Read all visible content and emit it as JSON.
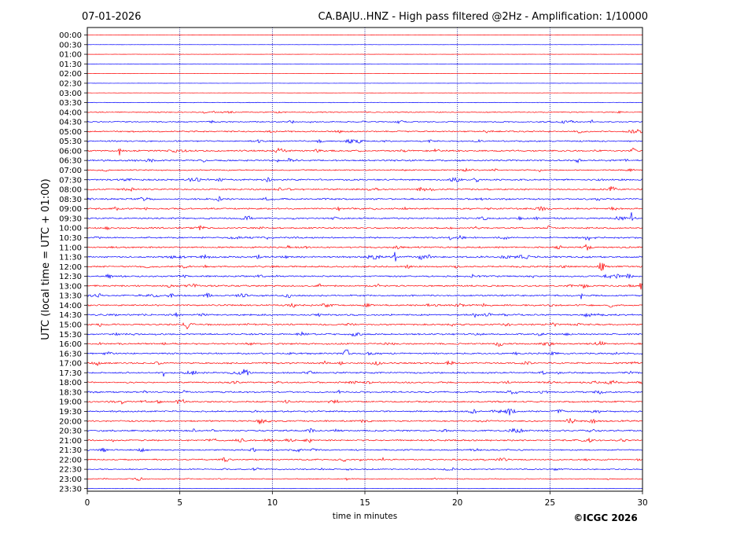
{
  "header": {
    "date": "07-01-2026",
    "title": "CA.BAJU..HNZ - High pass filtered @2Hz - Amplification: 1/10000"
  },
  "footer": {
    "copyright": "©ICGC 2026"
  },
  "colors": {
    "red": "#ff0000",
    "blue": "#0000ff",
    "grid": "#000080",
    "frame": "#000000"
  },
  "chart_data": {
    "type": "line",
    "subtype": "helicorder",
    "xlabel": "time in minutes",
    "ylabel": "UTC (local time = UTC + 01:00)",
    "xlim": [
      0,
      30
    ],
    "xticks": [
      0,
      5,
      10,
      15,
      20,
      25,
      30
    ],
    "grid": "vertical dotted lines at 5-minute intervals",
    "row_labels": [
      "00:00",
      "00:30",
      "01:00",
      "01:30",
      "02:00",
      "02:30",
      "03:00",
      "03:30",
      "04:00",
      "04:30",
      "05:00",
      "05:30",
      "06:00",
      "06:30",
      "07:00",
      "07:30",
      "08:00",
      "08:30",
      "09:00",
      "09:30",
      "10:00",
      "10:30",
      "11:00",
      "11:30",
      "12:00",
      "12:30",
      "13:00",
      "13:30",
      "14:00",
      "14:30",
      "15:00",
      "15:30",
      "16:00",
      "16:30",
      "17:00",
      "17:30",
      "18:00",
      "18:30",
      "19:00",
      "19:30",
      "20:00",
      "20:30",
      "21:00",
      "21:30",
      "22:00",
      "22:30",
      "23:00",
      "23:30"
    ],
    "row_colors": [
      "red",
      "blue"
    ],
    "noise_by_row": [
      0.1,
      0.1,
      0.1,
      0.1,
      0.1,
      0.1,
      0.1,
      0.3,
      0.5,
      0.6,
      0.7,
      0.7,
      0.8,
      0.8,
      0.6,
      0.8,
      0.8,
      0.8,
      0.8,
      0.8,
      0.8,
      0.8,
      0.8,
      0.9,
      0.8,
      0.8,
      0.8,
      0.8,
      0.8,
      0.8,
      0.8,
      0.8,
      0.8,
      0.8,
      0.8,
      0.8,
      0.8,
      0.8,
      0.8,
      0.8,
      0.8,
      0.8,
      0.8,
      0.7,
      0.7,
      0.6,
      0.5,
      0.1
    ],
    "events": [
      {
        "row": 12,
        "minute": 1.75,
        "amplitude": 1.0
      },
      {
        "row": 19,
        "minute": 29.4,
        "amplitude": 0.8
      },
      {
        "row": 23,
        "minute": 16.6,
        "amplitude": 1.6
      },
      {
        "row": 23,
        "minute": 18.0,
        "amplitude": 1.2
      },
      {
        "row": 23,
        "minute": 15.2,
        "amplitude": 0.6
      },
      {
        "row": 26,
        "minute": 29.9,
        "amplitude": 0.6
      },
      {
        "row": 35,
        "minute": 4.1,
        "amplitude": 0.8
      },
      {
        "row": 33,
        "minute": 29.8,
        "amplitude": 0.5
      },
      {
        "row": 27,
        "minute": 26.7,
        "amplitude": 0.5
      },
      {
        "row": 9,
        "minute": 14.9,
        "amplitude": 0.4
      },
      {
        "row": 21,
        "minute": 27.0,
        "amplitude": 0.4
      },
      {
        "row": 29,
        "minute": 27.2,
        "amplitude": 0.4
      }
    ]
  }
}
